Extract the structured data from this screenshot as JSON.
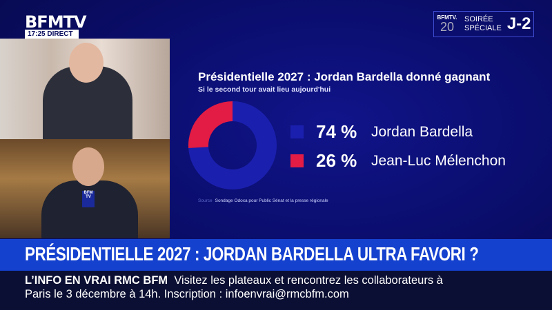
{
  "channel": {
    "logo": "BFMTV",
    "time": "17:25",
    "live": "DIRECT"
  },
  "badge": {
    "logo": "BFMTV.",
    "anniv": "20",
    "line1": "SOIRÉE",
    "line2": "SPÉCIALE",
    "countdown": "J-2"
  },
  "mic_label": "BFM TV",
  "chart_data": {
    "type": "pie",
    "title": "Présidentielle 2027 : Jordan Bardella donné gagnant",
    "subtitle": "Si le second tour avait lieu aujourd'hui",
    "donut": true,
    "series": [
      {
        "name": "Jordan Bardella",
        "value": 74,
        "label": "74 %",
        "color": "#1b1fae"
      },
      {
        "name": "Jean-Luc Mélenchon",
        "value": 26,
        "label": "26 %",
        "color": "#e21c45"
      }
    ],
    "source_label": "Source",
    "source": "Sondage Odoxa pour Public Sénat et la presse régionale"
  },
  "banner": "PRÉSIDENTIELLE 2027 : JORDAN BARDELLA ULTRA FAVORI ?",
  "ticker": {
    "brand": "L’INFO EN VRAI RMC BFM",
    "line1": "Visitez les plateaux et rencontrez les collaborateurs à",
    "line2": "Paris le 3 décembre à 14h. Inscription : infoenvrai@rmcbfm.com"
  }
}
